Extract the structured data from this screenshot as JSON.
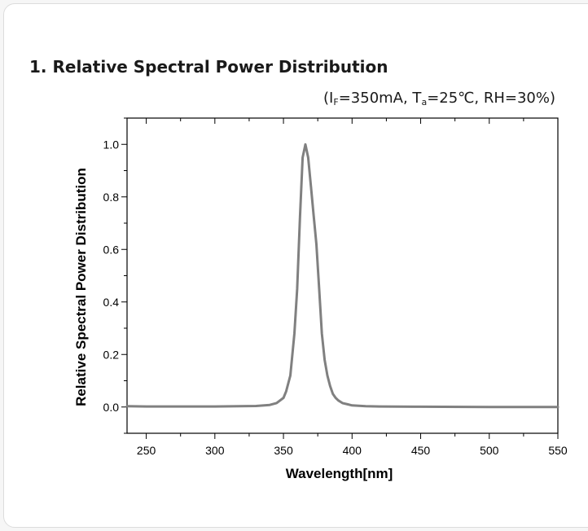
{
  "heading": {
    "section_title": "1. Relative Spectral Power Distribution",
    "conditions": {
      "open": "(I",
      "if_sub": "F",
      "mid1": "=350mA, T",
      "ta_sub": "a",
      "mid2": "=25℃, RH=30%)"
    }
  },
  "colors": {
    "curve": "#808080",
    "axis": "#000000",
    "background": "#ffffff"
  },
  "chart_data": {
    "type": "line",
    "title": "",
    "xlabel": "Wavelength[nm]",
    "ylabel": "Relative Spectral Power Distribution",
    "xlim": [
      236,
      550
    ],
    "ylim": [
      -0.1,
      1.1
    ],
    "xticks": [
      250,
      300,
      350,
      400,
      450,
      500,
      550
    ],
    "xtick_labels": [
      "250",
      "300",
      "350",
      "400",
      "450",
      "500",
      "550"
    ],
    "yticks": [
      0.0,
      0.2,
      0.4,
      0.6,
      0.8,
      1.0
    ],
    "ytick_labels": [
      "0.0",
      "0.2",
      "0.4",
      "0.6",
      "0.8",
      "1.0"
    ],
    "grid": false,
    "legend": "none",
    "series": [
      {
        "x": [
          236,
          250,
          300,
          330,
          340,
          345,
          350,
          352,
          355,
          358,
          360,
          362,
          364,
          366,
          368,
          370,
          372,
          374,
          376,
          378,
          380,
          382,
          384,
          386,
          388,
          390,
          393,
          397,
          400,
          410,
          420,
          450,
          500,
          550
        ],
        "y": [
          0.003,
          0.002,
          0.002,
          0.004,
          0.008,
          0.015,
          0.035,
          0.06,
          0.12,
          0.28,
          0.45,
          0.72,
          0.95,
          1.0,
          0.95,
          0.84,
          0.73,
          0.62,
          0.45,
          0.28,
          0.18,
          0.12,
          0.08,
          0.05,
          0.035,
          0.025,
          0.015,
          0.01,
          0.006,
          0.003,
          0.002,
          0.001,
          0.0,
          0.0
        ]
      }
    ]
  }
}
